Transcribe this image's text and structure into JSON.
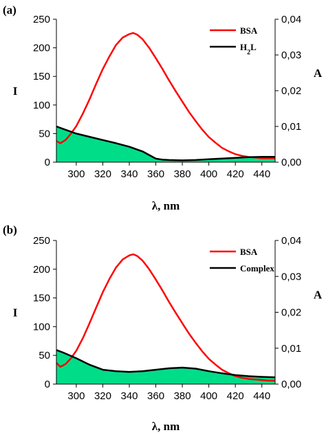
{
  "chart_data": [
    {
      "type": "line",
      "panel_label": "(a)",
      "xlabel": "λ, nm",
      "ylabel_left": "I",
      "ylabel_right": "A",
      "xlim": [
        285,
        450
      ],
      "ylim_left": [
        0,
        250
      ],
      "ylim_right": [
        0,
        0.04
      ],
      "x_ticks": [
        "300",
        "320",
        "340",
        "360",
        "380",
        "400",
        "420",
        "440"
      ],
      "y_left_ticks": [
        "0",
        "50",
        "100",
        "150",
        "200",
        "250"
      ],
      "y_right_ticks": [
        "0,00",
        "0,01",
        "0,02",
        "0,03",
        "0,04"
      ],
      "legend_position": "top-right",
      "series": [
        {
          "name": "BSA",
          "axis": "left",
          "color": "#ff0000",
          "x": [
            285,
            288,
            292,
            296,
            300,
            305,
            310,
            315,
            320,
            325,
            330,
            335,
            340,
            343,
            346,
            350,
            355,
            360,
            365,
            370,
            375,
            380,
            385,
            390,
            395,
            400,
            405,
            410,
            415,
            420,
            425,
            430,
            435,
            440,
            445,
            450
          ],
          "y": [
            37,
            33,
            39,
            50,
            63,
            85,
            110,
            137,
            163,
            185,
            205,
            218,
            224,
            226,
            223,
            215,
            200,
            182,
            163,
            143,
            124,
            106,
            88,
            72,
            57,
            44,
            34,
            25,
            19,
            14,
            11,
            9,
            8,
            7,
            7,
            7
          ]
        },
        {
          "name": "H2L",
          "axis": "right",
          "color": "#000000",
          "fill": "#00dd88",
          "x": [
            285,
            290,
            300,
            310,
            320,
            330,
            340,
            350,
            355,
            360,
            365,
            370,
            380,
            390,
            400,
            410,
            420,
            430,
            440,
            450
          ],
          "y": [
            0.01,
            0.0093,
            0.008,
            0.0071,
            0.0062,
            0.0053,
            0.0043,
            0.003,
            0.002,
            0.001,
            0.0007,
            0.0006,
            0.0005,
            0.0006,
            0.0008,
            0.001,
            0.0012,
            0.0014,
            0.0015,
            0.0015
          ]
        }
      ]
    },
    {
      "type": "line",
      "panel_label": "(b)",
      "xlabel": "λ, nm",
      "ylabel_left": "I",
      "ylabel_right": "A",
      "xlim": [
        285,
        450
      ],
      "ylim_left": [
        0,
        250
      ],
      "ylim_right": [
        0,
        0.04
      ],
      "x_ticks": [
        "300",
        "320",
        "340",
        "360",
        "380",
        "400",
        "420",
        "440"
      ],
      "y_left_ticks": [
        "0",
        "50",
        "100",
        "150",
        "200",
        "250"
      ],
      "y_right_ticks": [
        "0,00",
        "0,01",
        "0,02",
        "0,03",
        "0,04"
      ],
      "legend_position": "top-right",
      "series": [
        {
          "name": "BSA",
          "axis": "left",
          "color": "#ff0000",
          "x": [
            285,
            288,
            292,
            296,
            300,
            305,
            310,
            315,
            320,
            325,
            330,
            335,
            340,
            343,
            346,
            350,
            355,
            360,
            365,
            370,
            375,
            380,
            385,
            390,
            395,
            400,
            405,
            410,
            415,
            420,
            425,
            430,
            435,
            440,
            445,
            450
          ],
          "y": [
            37,
            30,
            35,
            45,
            58,
            80,
            106,
            133,
            160,
            183,
            203,
            217,
            224,
            226,
            223,
            215,
            200,
            182,
            163,
            143,
            124,
            106,
            88,
            72,
            57,
            44,
            34,
            25,
            19,
            14,
            11,
            9,
            8,
            7,
            6,
            6
          ]
        },
        {
          "name": "Complex",
          "axis": "right",
          "color": "#000000",
          "fill": "#00dd88",
          "x": [
            285,
            290,
            300,
            310,
            320,
            330,
            340,
            350,
            360,
            370,
            380,
            390,
            400,
            410,
            420,
            430,
            440,
            450
          ],
          "y": [
            0.0095,
            0.0088,
            0.0072,
            0.0054,
            0.004,
            0.0036,
            0.0034,
            0.0036,
            0.004,
            0.0044,
            0.0046,
            0.0043,
            0.0036,
            0.003,
            0.0025,
            0.0022,
            0.002,
            0.0019
          ]
        }
      ]
    }
  ]
}
